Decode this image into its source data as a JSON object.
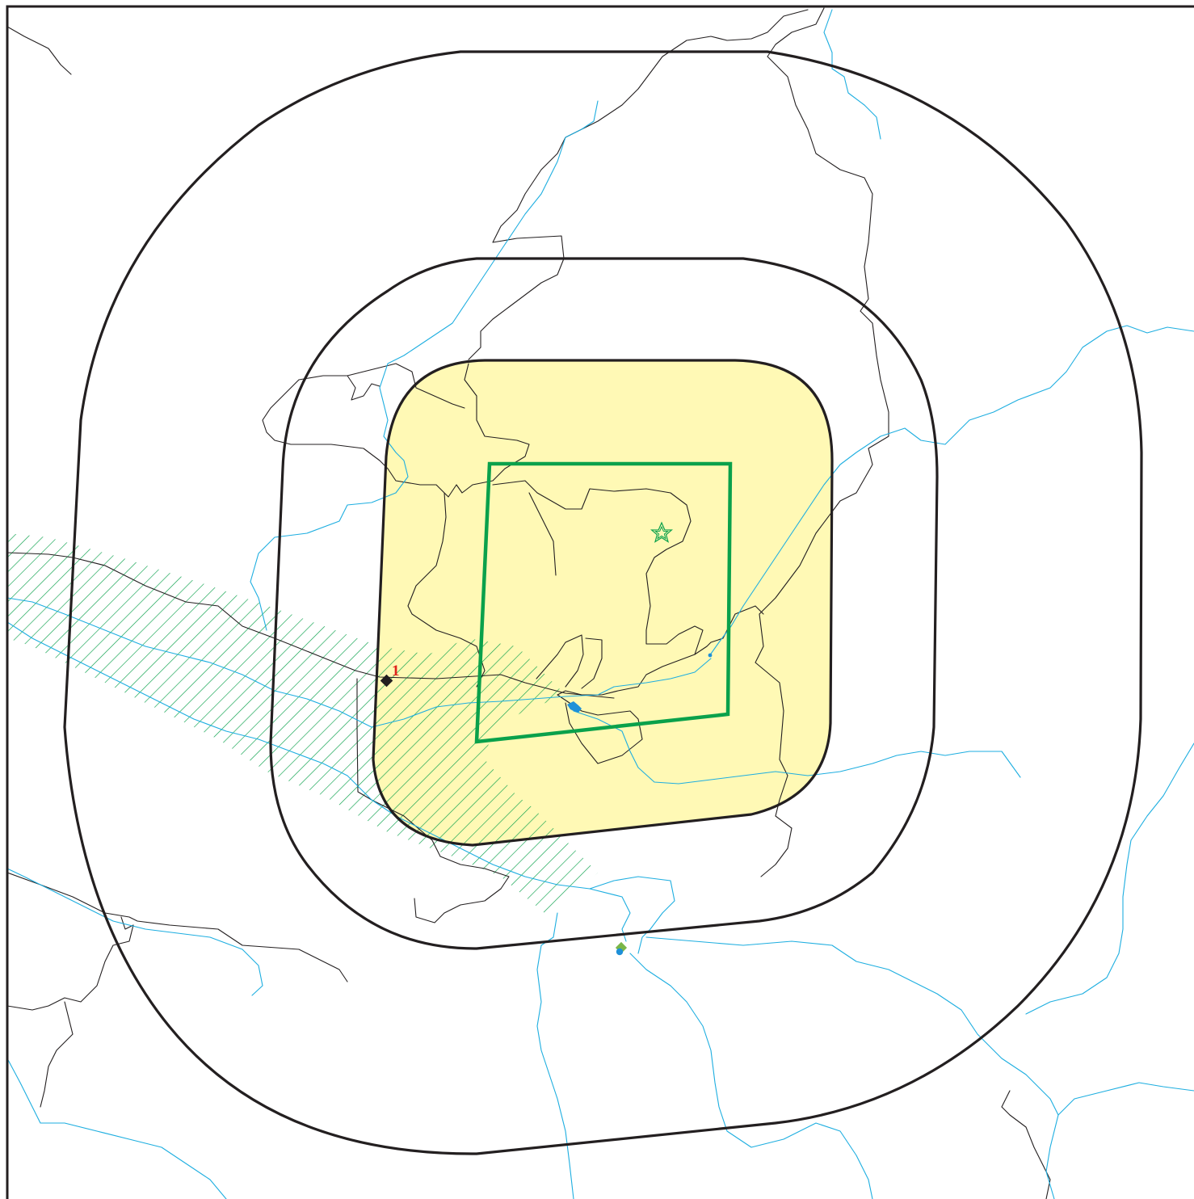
{
  "map": {
    "colors": {
      "background": "#ffffff",
      "frame": "#231f20",
      "roads": "#231f20",
      "rivers": "#1eaee0",
      "lake": "#1e90d8",
      "zone_fill": "#fff9b5",
      "site_boundary": "#0aa14b",
      "hatch": "#0aa14b",
      "marker_label": "#e0231c",
      "small_marker_green": "#7ab648"
    },
    "layers": [
      "hatched-corridor",
      "roads",
      "rivers",
      "buffer-rings",
      "site-boundary",
      "markers"
    ],
    "buffer_ring_count": 3,
    "markers": [
      {
        "name": "point-1",
        "label": "1",
        "symbol": "black-diamond"
      }
    ],
    "site_symbol": "star-icon",
    "lake_symbol": "lake-icon",
    "bottom_symbol": "green-blue-marker-icon"
  }
}
